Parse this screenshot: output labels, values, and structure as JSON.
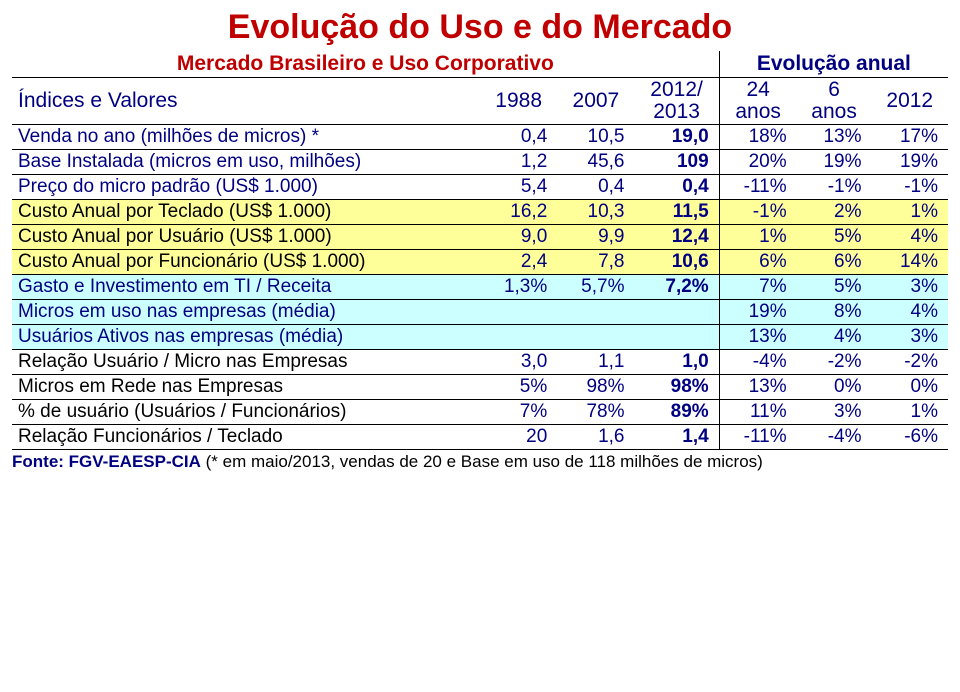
{
  "title": "Evolução do Uso e do Mercado",
  "header_left": "Mercado Brasileiro e Uso Corporativo",
  "header_right": "Evolução anual",
  "cols_label": "Índices e Valores",
  "cols": [
    "1988",
    "2007",
    "2012/\n2013",
    "24\nanos",
    "6\nanos",
    "2012"
  ],
  "rows": [
    {
      "label": "Venda no ano (milhões de micros) *",
      "cells": [
        "0,4",
        "10,5",
        "19,0",
        "18%",
        "13%",
        "17%"
      ],
      "label_color": "#000080",
      "num_color": "#000080",
      "bg": null,
      "bold_col": 2
    },
    {
      "label": "Base Instalada (micros em uso, milhões)",
      "cells": [
        "1,2",
        "45,6",
        "109",
        "20%",
        "19%",
        "19%"
      ],
      "label_color": "#000080",
      "num_color": "#000080",
      "bg": null,
      "bold_col": 2
    },
    {
      "label": "Preço do micro padrão (US$ 1.000)",
      "cells": [
        "5,4",
        "0,4",
        "0,4",
        "-11%",
        "-1%",
        "-1%"
      ],
      "label_color": "#000080",
      "num_color": "#000080",
      "bg": null,
      "bold_col": 2
    },
    {
      "label": "Custo Anual por Teclado (US$ 1.000)",
      "cells": [
        "16,2",
        "10,3",
        "11,5",
        "-1%",
        "2%",
        "1%"
      ],
      "label_color": "#000000",
      "num_color": "#000080",
      "bg": "#ffff99",
      "bold_col": 2
    },
    {
      "label": "Custo Anual por Usuário (US$ 1.000)",
      "cells": [
        "9,0",
        "9,9",
        "12,4",
        "1%",
        "5%",
        "4%"
      ],
      "label_color": "#000000",
      "num_color": "#000080",
      "bg": "#ffff99",
      "bold_col": 2
    },
    {
      "label": "Custo Anual por Funcionário (US$ 1.000)",
      "cells": [
        "2,4",
        "7,8",
        "10,6",
        "6%",
        "6%",
        "14%"
      ],
      "label_color": "#000000",
      "num_color": "#000080",
      "bg": "#ffff99",
      "bold_col": 2
    },
    {
      "label": "Gasto e Investimento em TI / Receita",
      "cells": [
        "1,3%",
        "5,7%",
        "7,2%",
        "7%",
        "5%",
        "3%"
      ],
      "label_color": "#000080",
      "num_color": "#000080",
      "bg": "#ccffff",
      "bold_col": 2
    },
    {
      "label": "Micros em uso nas empresas (média)",
      "cells": [
        "",
        "",
        "",
        "19%",
        "8%",
        "4%"
      ],
      "label_color": "#000080",
      "num_color": "#000080",
      "bg": "#ccffff",
      "bold_col": null
    },
    {
      "label": "Usuários Ativos nas empresas (média)",
      "cells": [
        "",
        "",
        "",
        "13%",
        "4%",
        "3%"
      ],
      "label_color": "#000080",
      "num_color": "#000080",
      "bg": "#ccffff",
      "bold_col": null
    },
    {
      "label": "Relação Usuário / Micro nas Empresas",
      "cells": [
        "3,0",
        "1,1",
        "1,0",
        "-4%",
        "-2%",
        "-2%"
      ],
      "label_color": "#000000",
      "num_color": "#000080",
      "bg": null,
      "bold_col": 2
    },
    {
      "label": "Micros em Rede nas Empresas",
      "cells": [
        "5%",
        "98%",
        "98%",
        "13%",
        "0%",
        "0%"
      ],
      "label_color": "#000000",
      "num_color": "#000080",
      "bg": null,
      "bold_col": 2
    },
    {
      "label": "% de usuário (Usuários / Funcionários)",
      "cells": [
        "7%",
        "78%",
        "89%",
        "11%",
        "3%",
        "1%"
      ],
      "label_color": "#000000",
      "num_color": "#000080",
      "bg": null,
      "bold_col": 2
    },
    {
      "label": "Relação Funcionários / Teclado",
      "cells": [
        "20",
        "1,6",
        "1,4",
        "-11%",
        "-4%",
        "-6%"
      ],
      "label_color": "#000000",
      "num_color": "#000080",
      "bg": null,
      "bold_col": 2
    }
  ],
  "footnote_source": "Fonte: FGV-EAESP-CIA",
  "footnote_rest": " (* em maio/2013, vendas de 20 e Base em uso de 118 milhões de micros)"
}
